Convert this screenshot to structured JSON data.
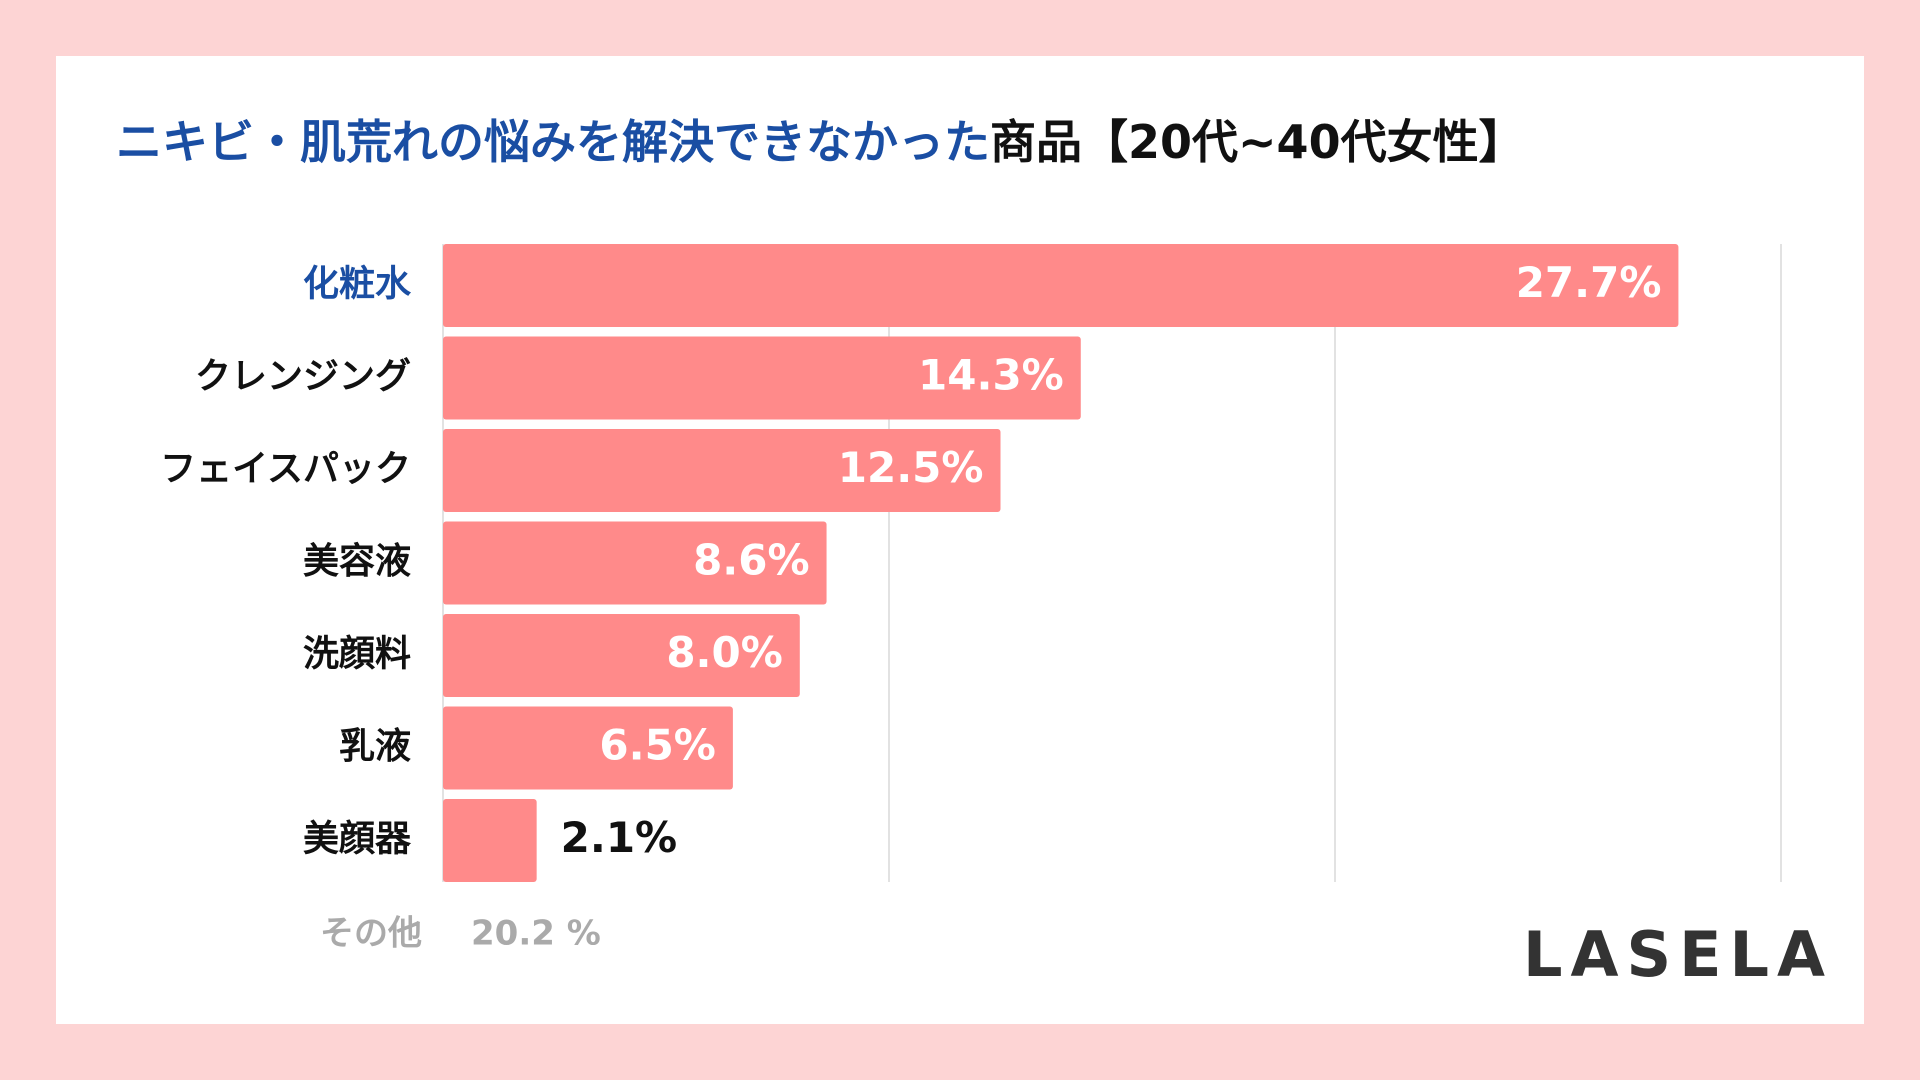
{
  "chart_data": {
    "type": "barh",
    "title_parts": [
      "ニキビ・肌荒れの悩みを解決できなかった",
      "商品【20代~40代女性】"
    ],
    "title_colors": [
      "#1a4ea3",
      "#111111"
    ],
    "categories": [
      "化粧水",
      "クレンジング",
      "フェイスパック",
      "美容液",
      "洗顔料",
      "乳液",
      "美顔器"
    ],
    "highlight_color": "#1a4ea3",
    "values": [
      27.7,
      14.3,
      12.5,
      8.6,
      8.0,
      6.5,
      2.1
    ],
    "value_labels": [
      "27.7%",
      "14.3%",
      "12.5%",
      "8.6%",
      "8.0%",
      "6.5%",
      "2.1%"
    ],
    "color": "#ff8a8a",
    "xlim": [
      0,
      30
    ],
    "xticks": [
      0,
      10,
      20,
      30
    ],
    "grid": true,
    "other": {
      "label": "その他",
      "value": 20.2,
      "value_label": "20.2 %"
    },
    "brand": "LASELA"
  }
}
